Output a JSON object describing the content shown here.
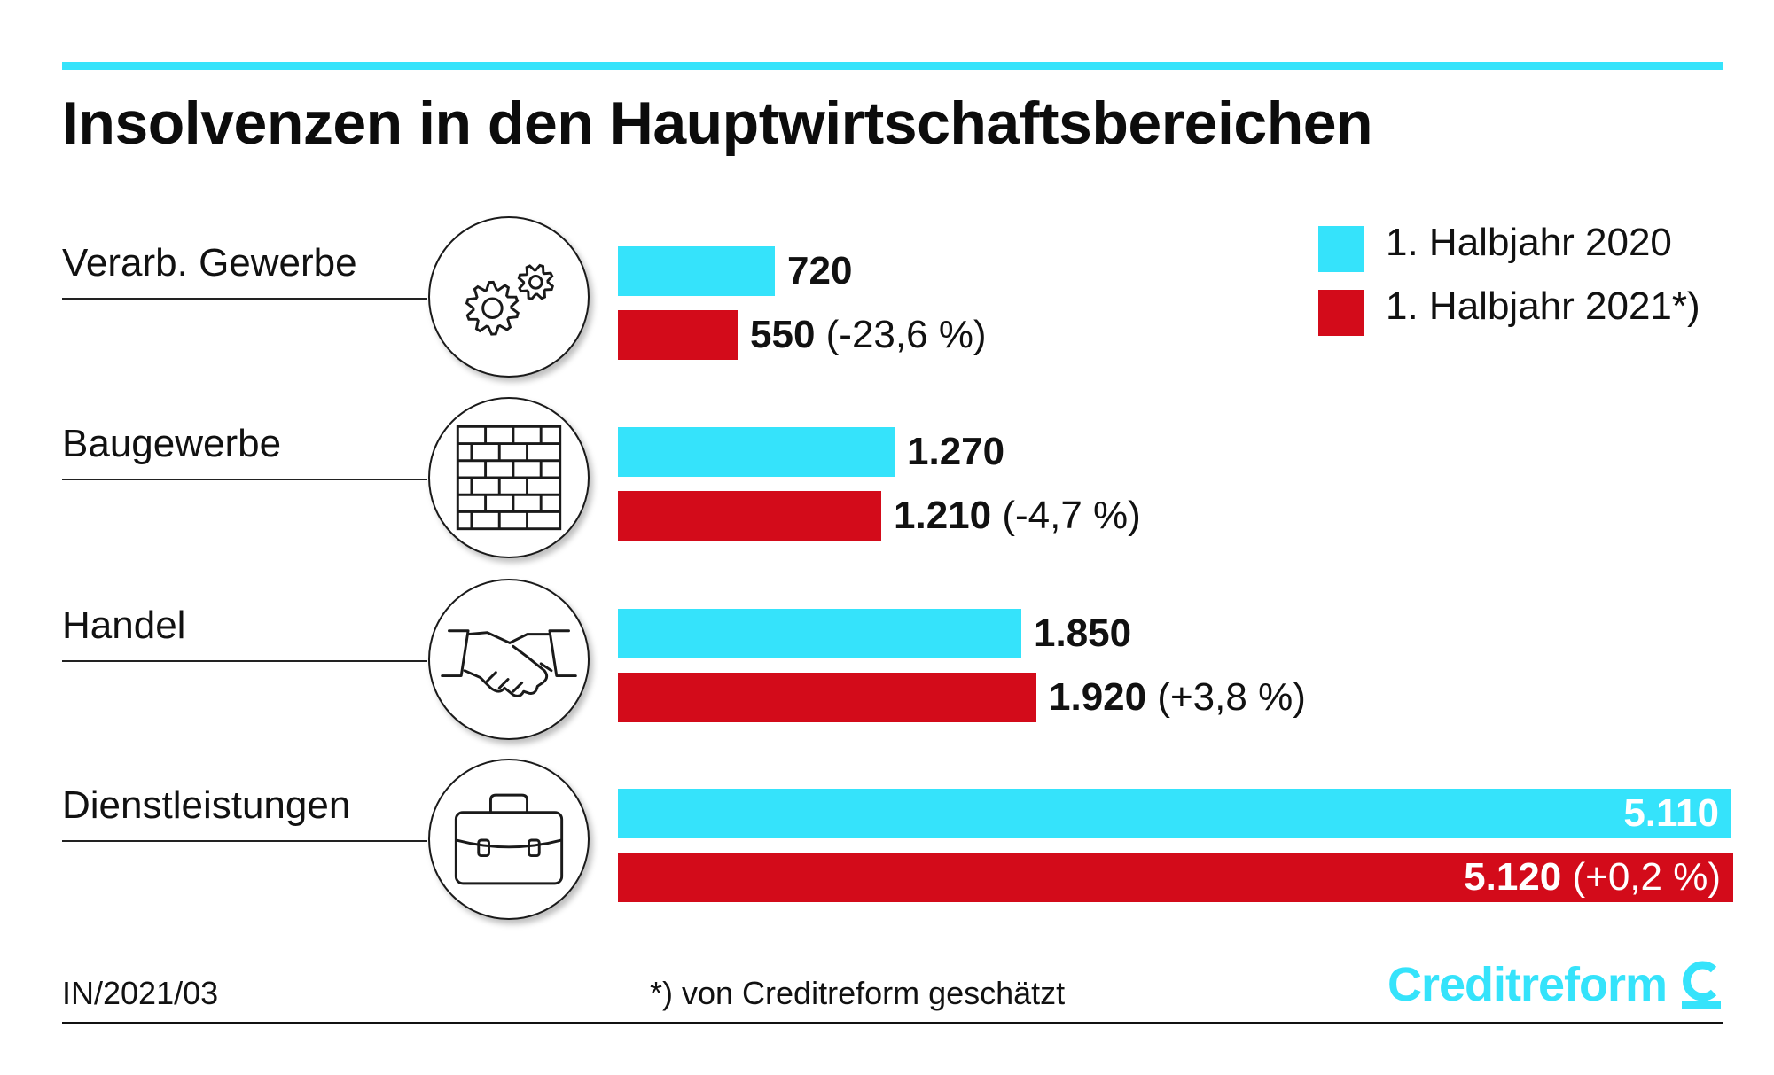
{
  "title": "Insolvenzen in den Hauptwirtschaftsbereichen",
  "chart_data": {
    "type": "bar",
    "orientation": "horizontal",
    "title": "Insolvenzen in den Hauptwirtschaftsbereichen",
    "categories": [
      "Verarb. Gewerbe",
      "Baugewerbe",
      "Handel",
      "Dienstleistungen"
    ],
    "icons": [
      "gears-icon",
      "brick-wall-icon",
      "handshake-icon",
      "briefcase-icon"
    ],
    "series": [
      {
        "name": "1. Halbjahr 2020",
        "color": "#35e3fb",
        "values": [
          720,
          1270,
          1850,
          5110
        ],
        "labels": [
          "720",
          "1.270",
          "1.850",
          "5.110"
        ],
        "changes": [
          "",
          "",
          "",
          ""
        ]
      },
      {
        "name": "1. Halbjahr 2021*)",
        "color": "#d30b1a",
        "values": [
          550,
          1210,
          1920,
          5120
        ],
        "labels": [
          "550",
          "1.210",
          "1.920",
          "5.120"
        ],
        "changes": [
          "(-23,6 %)",
          "(-4,7 %)",
          "(+3,8 %)",
          "(+0,2 %)"
        ]
      }
    ],
    "xlim": [
      0,
      5120
    ],
    "legend": "top-right",
    "grid": false
  },
  "footer": {
    "code": "IN/2021/03",
    "note": "*) von Creditreform geschätzt",
    "brand": "Creditreform"
  }
}
